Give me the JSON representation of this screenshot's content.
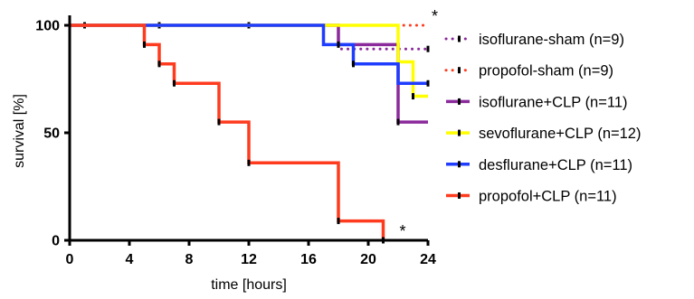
{
  "chart_data": {
    "type": "line",
    "step": true,
    "xlabel": "time [hours]",
    "ylabel": "survival [%]",
    "xlim": [
      0,
      24
    ],
    "ylim": [
      0,
      100
    ],
    "xticks": [
      0,
      4,
      8,
      12,
      16,
      20,
      24
    ],
    "yticks": [
      0,
      50,
      100
    ],
    "x_tick_labels": [
      "0",
      "4",
      "8",
      "12",
      "16",
      "20",
      "24"
    ],
    "y_tick_labels": [
      "0",
      "50",
      "100"
    ],
    "grid": false,
    "legend_position": "right",
    "series": [
      {
        "name": "isoflurane-sham (n=9)",
        "color": "#8b2a9b",
        "dash": "dotted",
        "steps": [
          [
            0,
            100
          ],
          [
            18,
            100
          ],
          [
            18,
            89
          ]
        ],
        "end": 24,
        "censor": [
          [
            24,
            89
          ]
        ]
      },
      {
        "name": "propofol-sham (n=9)",
        "color": "#ff3b1f",
        "dash": "dotted",
        "steps": [
          [
            0,
            100
          ]
        ],
        "end": 24,
        "censor": [
          [
            1,
            100
          ],
          [
            6,
            100
          ],
          [
            12,
            100
          ]
        ]
      },
      {
        "name": "isoflurane+CLP (n=11)",
        "color": "#8b2a9b",
        "dash": "solid",
        "steps": [
          [
            0,
            100
          ],
          [
            18,
            100
          ],
          [
            18,
            91
          ],
          [
            22,
            91
          ],
          [
            22,
            55
          ]
        ],
        "end": 24,
        "censor": [
          [
            22,
            55
          ]
        ]
      },
      {
        "name": "sevoflurane+CLP (n=12)",
        "color": "#ffff00",
        "dash": "solid",
        "steps": [
          [
            0,
            100
          ],
          [
            22,
            100
          ],
          [
            22,
            83
          ],
          [
            23,
            83
          ],
          [
            23,
            67
          ]
        ],
        "end": 24,
        "censor": [
          [
            23,
            67
          ]
        ]
      },
      {
        "name": "desflurane+CLP (n=11)",
        "color": "#1f3dff",
        "dash": "solid",
        "steps": [
          [
            0,
            100
          ],
          [
            17,
            100
          ],
          [
            17,
            91
          ],
          [
            19,
            91
          ],
          [
            19,
            82
          ],
          [
            22,
            82
          ],
          [
            22,
            73
          ]
        ],
        "end": 24,
        "censor": [
          [
            18,
            91
          ],
          [
            19,
            82
          ],
          [
            24,
            73
          ]
        ]
      },
      {
        "name": "propofol+CLP (n=11)",
        "color": "#ff3b1f",
        "dash": "solid",
        "steps": [
          [
            0,
            100
          ],
          [
            5,
            100
          ],
          [
            5,
            91
          ],
          [
            6,
            91
          ],
          [
            6,
            82
          ],
          [
            7,
            82
          ],
          [
            7,
            73
          ],
          [
            10,
            73
          ],
          [
            10,
            55
          ],
          [
            12,
            55
          ],
          [
            12,
            36
          ],
          [
            18,
            36
          ],
          [
            18,
            9
          ],
          [
            21,
            9
          ],
          [
            21,
            0
          ]
        ],
        "end": 21,
        "censor": [
          [
            5,
            91
          ],
          [
            6,
            82
          ],
          [
            7,
            73
          ],
          [
            10,
            55
          ],
          [
            12,
            36
          ],
          [
            18,
            9
          ],
          [
            21,
            0
          ]
        ]
      }
    ],
    "annotations": [
      {
        "text": "*",
        "x": 24,
        "y": 100
      },
      {
        "text": "*",
        "x": 21,
        "y": 0
      }
    ]
  }
}
